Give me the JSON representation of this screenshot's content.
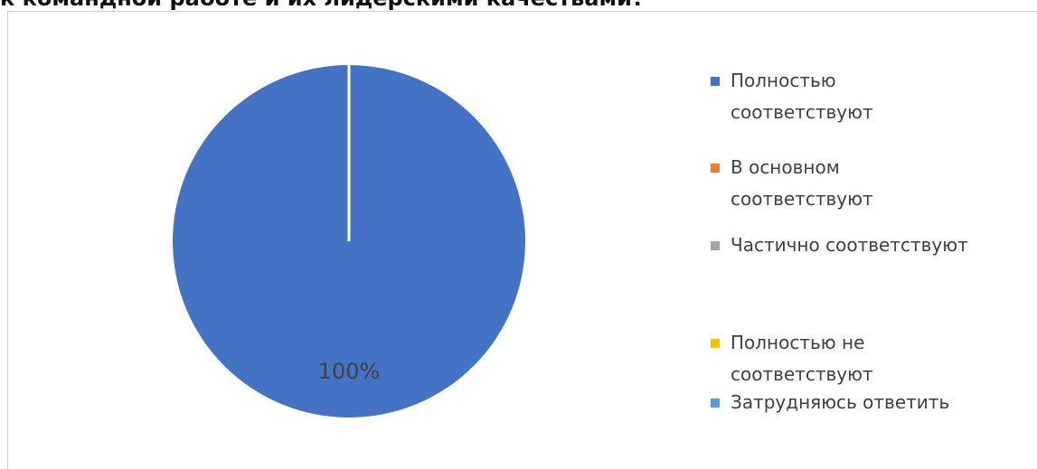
{
  "heading": "к командной работе и их лидерскими качествами?",
  "chart_data": {
    "type": "pie",
    "title": "",
    "categories": [
      "Полностью соответствуют",
      "В основном соответствуют",
      "Частично соответствуют",
      "Полностью не соответствуют",
      "Затрудняюсь ответить"
    ],
    "values": [
      100,
      0,
      0,
      0,
      0
    ],
    "data_labels": [
      "100%",
      "",
      "",
      "",
      ""
    ],
    "colors": [
      "#4472C4",
      "#ED7D31",
      "#A5A5A5",
      "#FFC000",
      "#5B9BD5"
    ],
    "legend": {
      "position": "right",
      "items": [
        {
          "label_lines": [
            "Полностью",
            "соответствуют"
          ],
          "color": "#4472C4"
        },
        {
          "label_lines": [
            "В основном",
            "соответствуют"
          ],
          "color": "#ED7D31"
        },
        {
          "label_lines": [
            "Частично соответствуют"
          ],
          "color": "#A5A5A5"
        },
        {
          "label_lines": [
            "Полностью не",
            "соответствуют"
          ],
          "color": "#FFC000"
        },
        {
          "label_lines": [
            "Затрудняюсь ответить"
          ],
          "color": "#5B9BD5"
        }
      ]
    }
  }
}
